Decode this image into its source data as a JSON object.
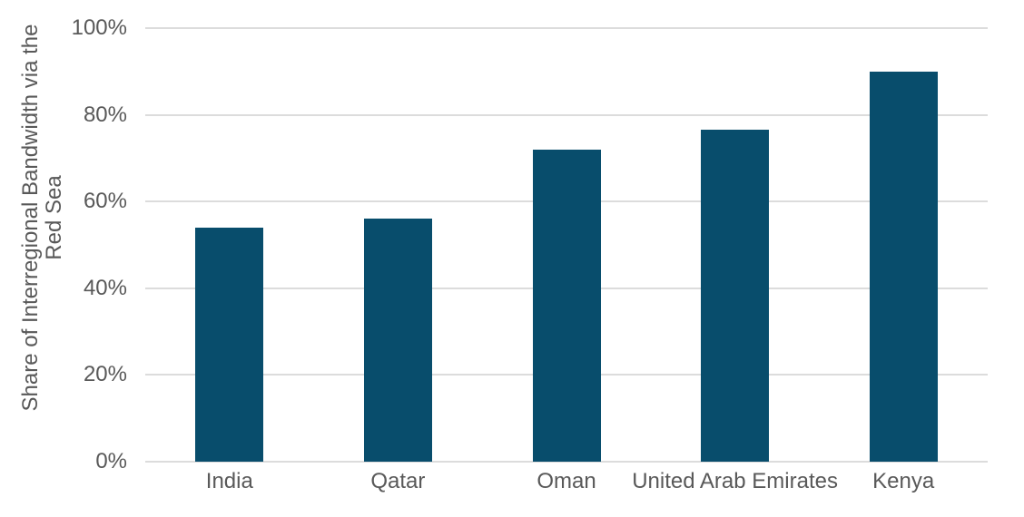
{
  "chart_data": {
    "type": "bar",
    "categories": [
      "India",
      "Qatar",
      "Oman",
      "United Arab Emirates",
      "Kenya"
    ],
    "values": [
      54,
      56,
      72,
      76.5,
      90
    ],
    "title": "",
    "xlabel": "",
    "ylabel": "Share of Interregional Bandwidth via the Red Sea",
    "ylabel_lines": [
      "Share of Interregional Bandwidth via the",
      "Red Sea"
    ],
    "ylim": [
      0,
      100
    ],
    "yticks": [
      0,
      20,
      40,
      60,
      80,
      100
    ],
    "ytick_labels": [
      "0%",
      "20%",
      "40%",
      "60%",
      "80%",
      "100%"
    ],
    "grid": true,
    "legend": false,
    "colors": {
      "bar": "#084D6C",
      "gridline": "#DCDCDC",
      "axis_text": "#595959",
      "background": "#FFFFFF"
    }
  }
}
